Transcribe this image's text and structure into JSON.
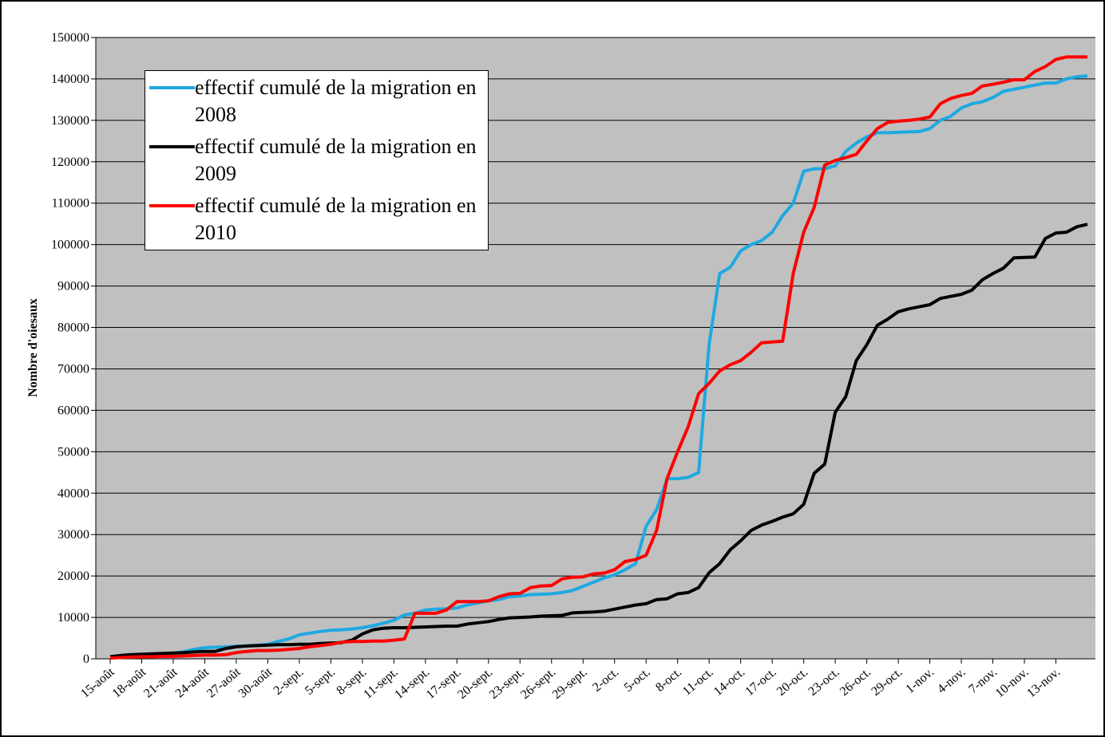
{
  "chart_data": {
    "type": "line",
    "y_label": "Nombre d'oiesaux",
    "categories": [
      "15-août",
      null,
      null,
      "18-août",
      null,
      null,
      "21-août",
      null,
      null,
      "24-août",
      null,
      null,
      "27-août",
      null,
      null,
      "30-août",
      null,
      null,
      "2-sept.",
      null,
      null,
      "5-sept.",
      null,
      null,
      "8-sept.",
      null,
      null,
      "11-sept.",
      null,
      null,
      "14-sept.",
      null,
      null,
      "17-sept.",
      null,
      null,
      "20-sept.",
      null,
      null,
      "23-sept.",
      null,
      null,
      "26-sept.",
      null,
      null,
      "29-sept.",
      null,
      null,
      "2-oct.",
      null,
      null,
      "5-oct.",
      null,
      null,
      "8-oct.",
      null,
      null,
      "11-oct.",
      null,
      null,
      "14-oct.",
      null,
      null,
      "17-oct.",
      null,
      null,
      "20-oct.",
      null,
      null,
      "23-oct.",
      null,
      null,
      "26-oct.",
      null,
      null,
      "29-oct.",
      null,
      null,
      "1-nov.",
      null,
      null,
      "4-nov.",
      null,
      null,
      "7-nov.",
      null,
      null,
      "10-nov.",
      null,
      null,
      "13-nov.",
      null,
      null,
      null
    ],
    "series": [
      {
        "name": "effectif cumulé de la migration en 2008",
        "color": "#1ea9e1",
        "values": [
          500,
          700,
          900,
          1000,
          1100,
          1200,
          1300,
          1700,
          2300,
          2700,
          2800,
          2900,
          3000,
          3100,
          3300,
          3500,
          4200,
          4800,
          5800,
          6200,
          6600,
          6900,
          7000,
          7200,
          7500,
          8000,
          8600,
          9300,
          10600,
          11000,
          11800,
          12000,
          12100,
          12300,
          13000,
          13500,
          14000,
          14300,
          15000,
          15200,
          15500,
          15600,
          15700,
          16000,
          16500,
          17500,
          18500,
          19500,
          20300,
          21500,
          23000,
          32000,
          36000,
          43500,
          43500,
          43800,
          45000,
          76000,
          93000,
          94500,
          98500,
          100000,
          101000,
          103000,
          107000,
          110000,
          117700,
          118300,
          118300,
          119000,
          122500,
          124500,
          126000,
          127000,
          127000,
          127100,
          127200,
          127300,
          128000,
          130000,
          131000,
          133000,
          134000,
          134500,
          135500,
          137000,
          137500,
          138000,
          138500,
          139000,
          139000,
          140000,
          140500,
          140700
        ]
      },
      {
        "name": "effectif cumulé de la migration en 2009",
        "color": "#000000",
        "values": [
          500,
          800,
          1000,
          1100,
          1200,
          1300,
          1400,
          1500,
          1700,
          1800,
          1800,
          2500,
          2900,
          3100,
          3200,
          3300,
          3400,
          3400,
          3500,
          3500,
          3700,
          3800,
          3900,
          4500,
          6000,
          7000,
          7400,
          7500,
          7500,
          7600,
          7700,
          7800,
          7900,
          7900,
          8400,
          8700,
          9000,
          9500,
          9900,
          10000,
          10100,
          10300,
          10400,
          10500,
          11100,
          11200,
          11300,
          11500,
          12000,
          12500,
          13000,
          13300,
          14300,
          14500,
          15700,
          16000,
          17200,
          20800,
          23000,
          26300,
          28500,
          31000,
          32300,
          33200,
          34200,
          35000,
          37300,
          44800,
          47000,
          59500,
          63300,
          72000,
          75800,
          80500,
          82000,
          83800,
          84500,
          85000,
          85500,
          87000,
          87500,
          88000,
          89000,
          91500,
          93000,
          94300,
          96800,
          96900,
          97000,
          101500,
          102800,
          103000,
          104300,
          104900
        ]
      },
      {
        "name": "effectif cumulé de la migration en 2010",
        "color": "#ff0000",
        "values": [
          200,
          300,
          400,
          500,
          500,
          600,
          600,
          700,
          800,
          900,
          900,
          1000,
          1500,
          1800,
          2000,
          2000,
          2100,
          2300,
          2500,
          2900,
          3200,
          3500,
          4000,
          4200,
          4200,
          4300,
          4300,
          4500,
          4800,
          11000,
          11000,
          11000,
          11800,
          13800,
          13800,
          13800,
          14000,
          15000,
          15700,
          15800,
          17200,
          17600,
          17700,
          19300,
          19700,
          19800,
          20500,
          20700,
          21500,
          23500,
          24000,
          25000,
          31000,
          43500,
          50000,
          56000,
          64000,
          66500,
          69500,
          71000,
          72000,
          74000,
          76300,
          76500,
          76700,
          93000,
          103000,
          109000,
          119200,
          120300,
          121000,
          121800,
          125000,
          128000,
          129500,
          129800,
          130000,
          130300,
          130800,
          134000,
          135300,
          136000,
          136500,
          138300,
          138700,
          139200,
          139800,
          139800,
          141800,
          143000,
          144700,
          145300,
          145300,
          145300
        ]
      }
    ],
    "ylim": [
      0,
      150000
    ],
    "yticks": [
      0,
      10000,
      20000,
      30000,
      40000,
      50000,
      60000,
      70000,
      80000,
      90000,
      100000,
      110000,
      120000,
      130000,
      140000,
      150000
    ],
    "grid": true,
    "legend": "upper left"
  }
}
